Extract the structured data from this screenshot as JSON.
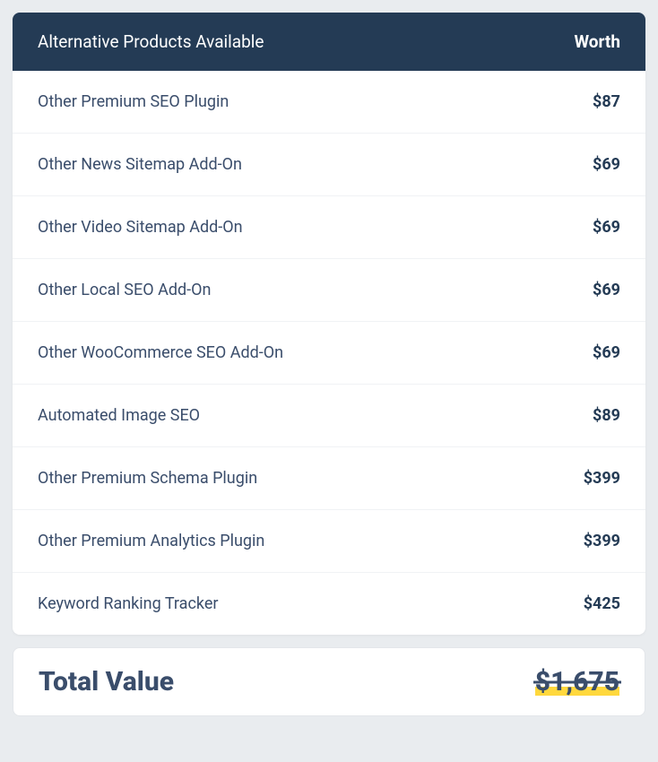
{
  "header": {
    "title": "Alternative Products Available",
    "worth": "Worth"
  },
  "rows": [
    {
      "name": "Other Premium SEO Plugin",
      "price": "$87"
    },
    {
      "name": "Other News Sitemap Add-On",
      "price": "$69"
    },
    {
      "name": "Other Video Sitemap Add-On",
      "price": "$69"
    },
    {
      "name": "Other Local SEO Add-On",
      "price": "$69"
    },
    {
      "name": "Other WooCommerce SEO Add-On",
      "price": "$69"
    },
    {
      "name": "Automated Image SEO",
      "price": "$89"
    },
    {
      "name": "Other Premium Schema Plugin",
      "price": "$399"
    },
    {
      "name": "Other Premium Analytics Plugin",
      "price": "$399"
    },
    {
      "name": "Keyword Ranking Tracker",
      "price": "$425"
    }
  ],
  "total": {
    "label": "Total Value",
    "value": "$1,675",
    "strikethrough": true,
    "highlight_color": "#ffd83d"
  },
  "colors": {
    "header_bg": "#243b55",
    "header_text": "#ffffff",
    "row_text": "#3a4d6b",
    "price_text": "#243b55",
    "border": "#f0f2f5",
    "page_bg": "#e9ecef",
    "card_bg": "#ffffff"
  }
}
